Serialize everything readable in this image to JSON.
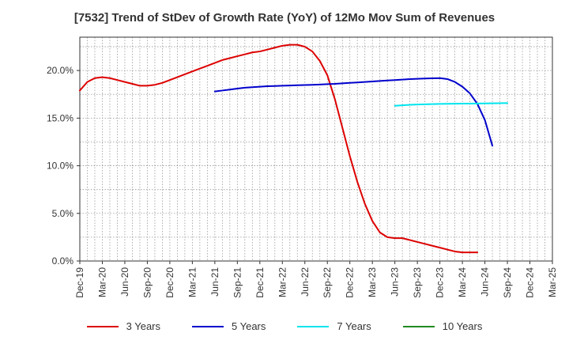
{
  "chart_data": {
    "type": "line",
    "title": "[7532]  Trend of StDev of Growth Rate (YoY) of 12Mo Mov Sum of Revenues",
    "xlabel": "",
    "ylabel": "",
    "ylim": [
      0,
      0.235
    ],
    "y_ticks": [
      0,
      0.05,
      0.1,
      0.15,
      0.2
    ],
    "y_tick_labels": [
      "0.0%",
      "5.0%",
      "10.0%",
      "15.0%",
      "20.0%"
    ],
    "x_ticks": [
      "Dec-19",
      "Mar-20",
      "Jun-20",
      "Sep-20",
      "Dec-20",
      "Mar-21",
      "Jun-21",
      "Sep-21",
      "Dec-21",
      "Mar-22",
      "Jun-22",
      "Sep-22",
      "Dec-22",
      "Mar-23",
      "Jun-23",
      "Sep-23",
      "Dec-23",
      "Mar-24",
      "Jun-24",
      "Sep-24",
      "Dec-24",
      "Mar-25"
    ],
    "x_start": "Dec-19",
    "grid": true,
    "legend_position": "bottom",
    "series": [
      {
        "name": "3 Years",
        "color": "#dd0000",
        "start_index": 0,
        "values": [
          0.179,
          0.188,
          0.192,
          0.193,
          0.192,
          0.19,
          0.188,
          0.186,
          0.184,
          0.184,
          0.185,
          0.187,
          0.19,
          0.193,
          0.196,
          0.199,
          0.202,
          0.205,
          0.208,
          0.211,
          0.213,
          0.215,
          0.217,
          0.219,
          0.22,
          0.222,
          0.224,
          0.226,
          0.227,
          0.227,
          0.225,
          0.22,
          0.21,
          0.195,
          0.17,
          0.14,
          0.11,
          0.083,
          0.06,
          0.042,
          0.03,
          0.025,
          0.024,
          0.024,
          0.022,
          0.02,
          0.018,
          0.016,
          0.014,
          0.012,
          0.01,
          0.009,
          0.009,
          0.009
        ]
      },
      {
        "name": "5 Years",
        "color": "#0000cc",
        "start_index": 18,
        "values": [
          0.178,
          0.179,
          0.18,
          0.181,
          0.182,
          0.1825,
          0.183,
          0.1835,
          0.1837,
          0.184,
          0.1842,
          0.1845,
          0.1848,
          0.185,
          0.1853,
          0.1857,
          0.186,
          0.1865,
          0.187,
          0.1875,
          0.188,
          0.1885,
          0.189,
          0.1895,
          0.19,
          0.1905,
          0.191,
          0.1913,
          0.1916,
          0.1918,
          0.192,
          0.191,
          0.188,
          0.183,
          0.176,
          0.165,
          0.148,
          0.121
        ]
      },
      {
        "name": "7 Years",
        "color": "#00e5ee",
        "start_index": 42,
        "values": [
          0.163,
          0.1635,
          0.164,
          0.1643,
          0.1645,
          0.1647,
          0.1649,
          0.165,
          0.1651,
          0.1652,
          0.1653,
          0.1654,
          0.1655,
          0.1656,
          0.1657,
          0.1658
        ]
      },
      {
        "name": "10 Years",
        "color": "#228b22",
        "start_index": 0,
        "values": []
      }
    ]
  }
}
